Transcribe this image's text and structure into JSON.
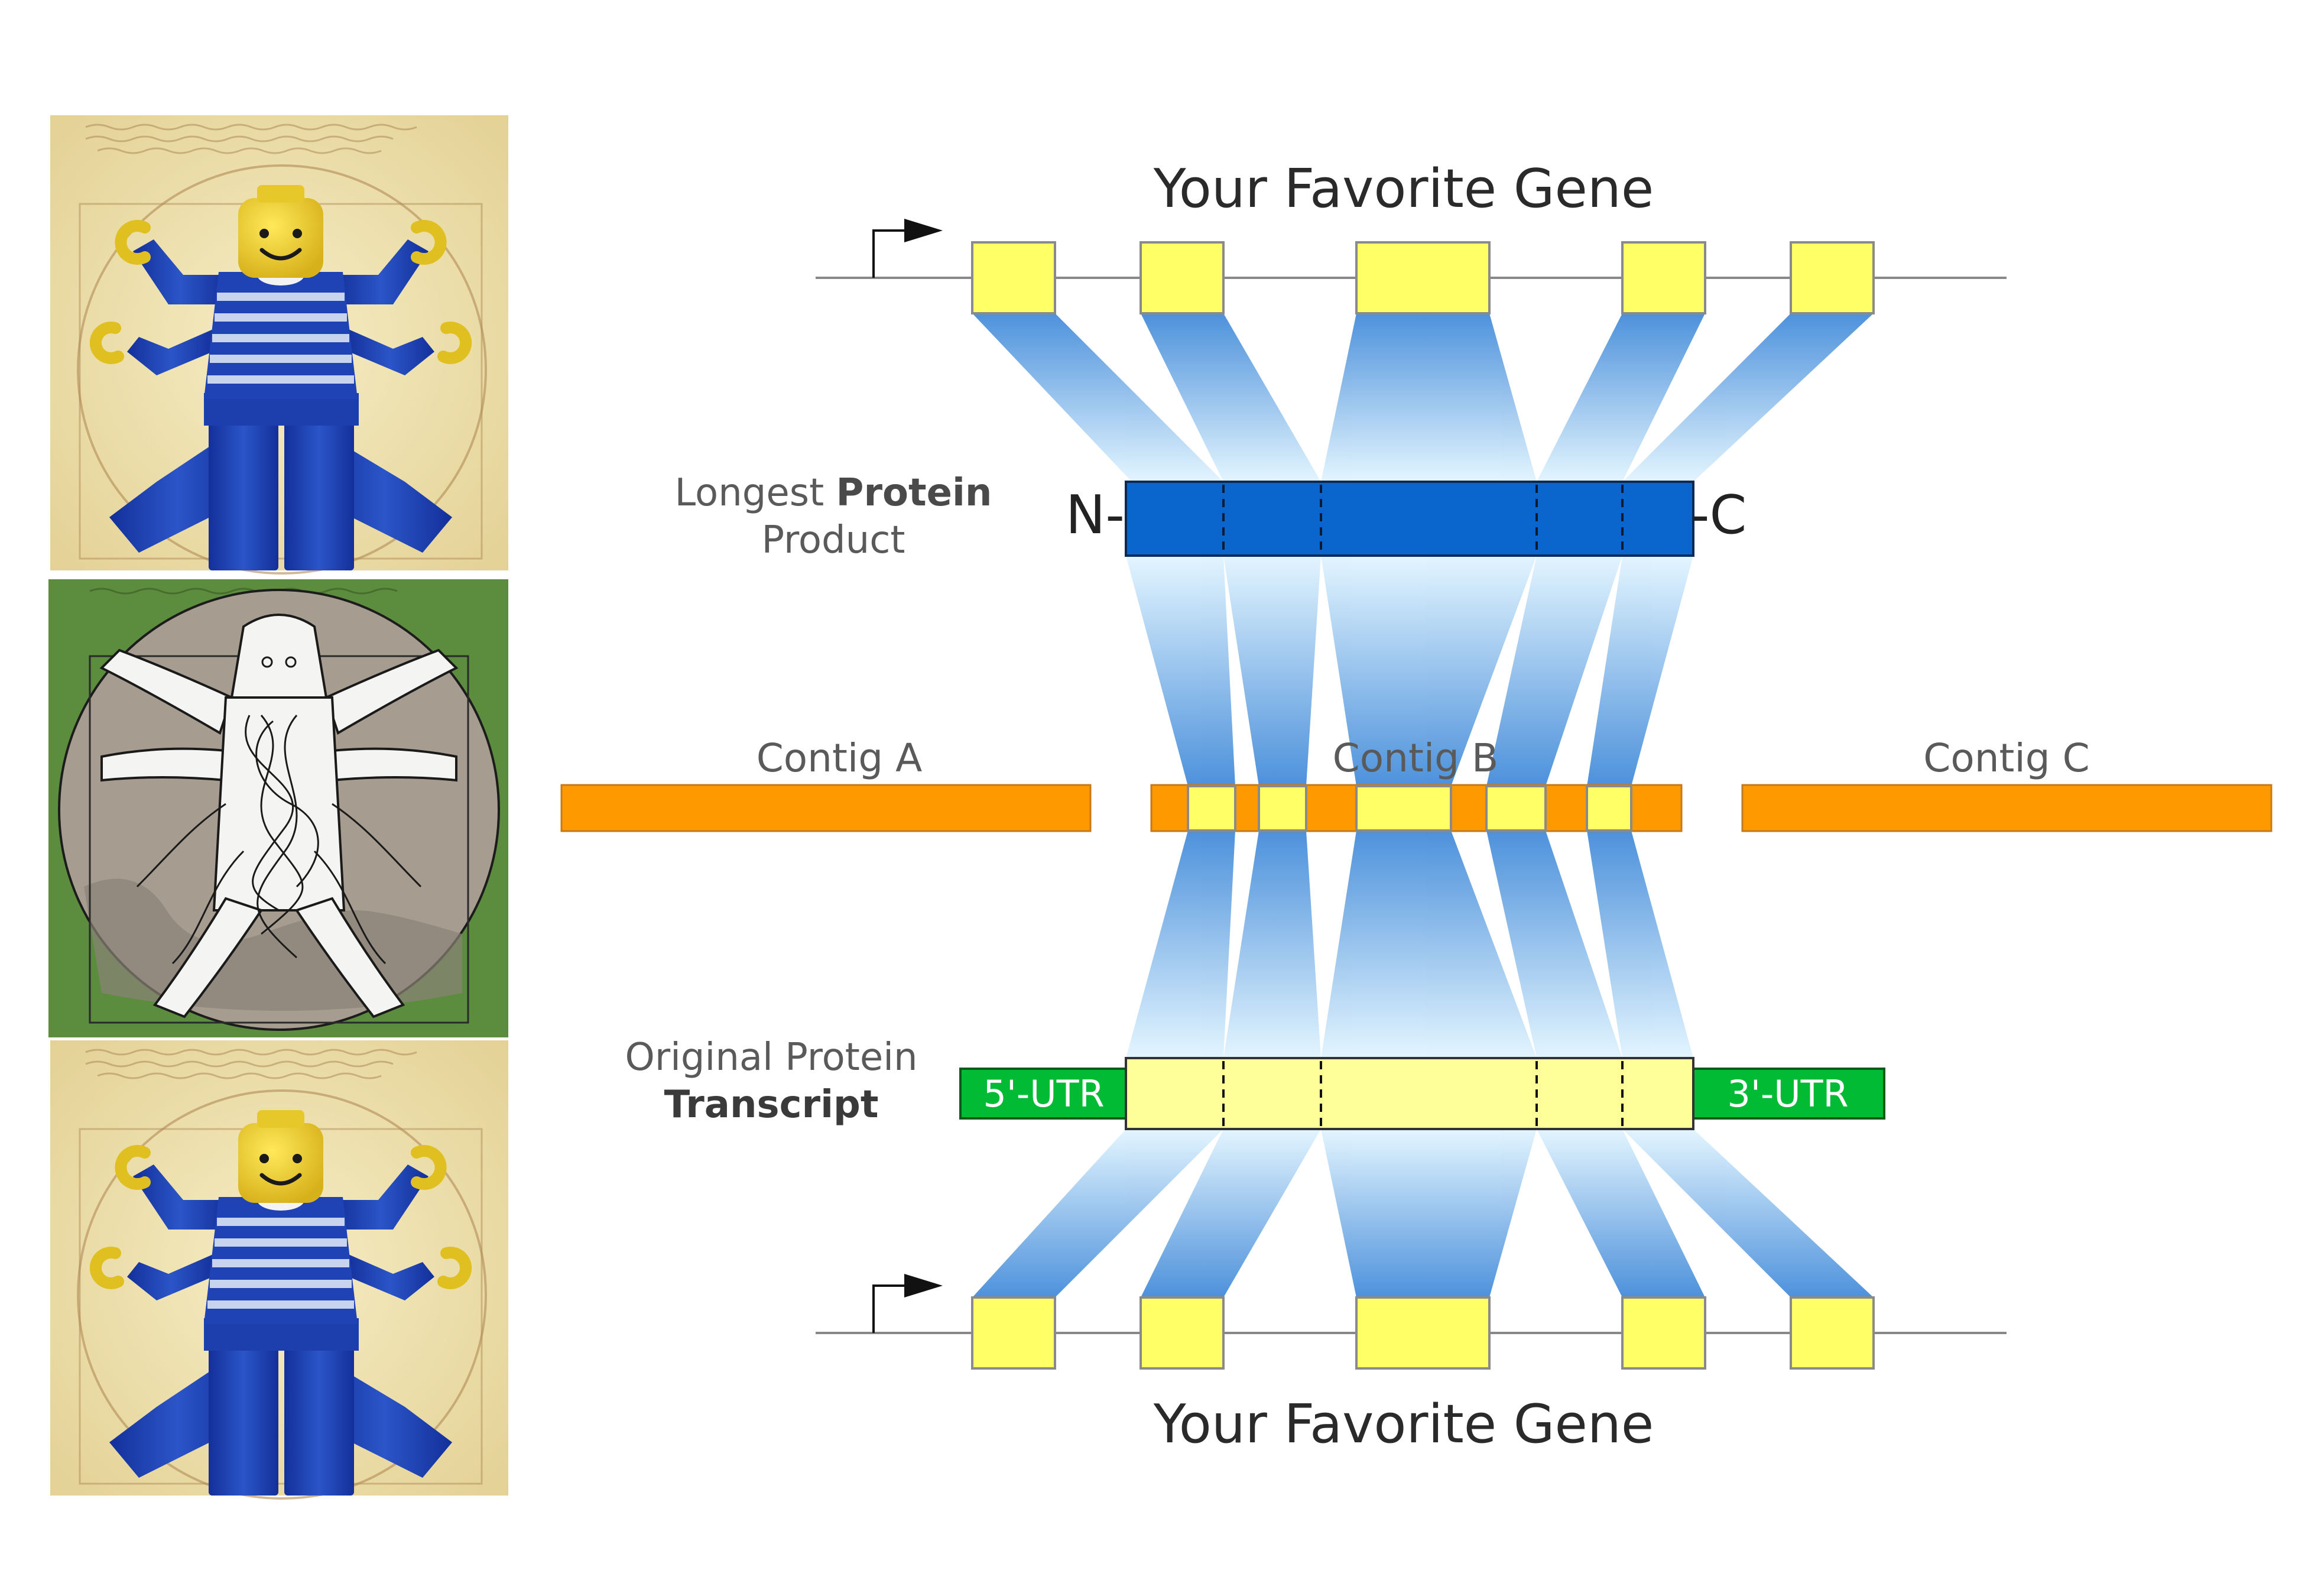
{
  "panels": {
    "top_image": {
      "subject": "lego-vitruvian-man",
      "background": "#efe3b4"
    },
    "middle_image": {
      "subject": "vitruvian-tentacle-creature-sketch",
      "background": "#5b8a3c",
      "disc": "#a89e92"
    },
    "bottom_image": {
      "subject": "lego-vitruvian-man",
      "background": "#efe3b4"
    }
  },
  "diagram": {
    "gene_top_title": "Your Favorite Gene",
    "gene_bottom_title": "Your Favorite Gene",
    "protein_label": {
      "prefix": "Longest ",
      "bold": "Protein",
      "line2": "Product"
    },
    "protein_n_terminus": "N-",
    "protein_c_terminus": "-C",
    "transcript_label": {
      "line1": "Original Protein",
      "bold": "Transcript"
    },
    "utr5": "5'-UTR",
    "utr3": "3'-UTR",
    "contig_a": "Contig A",
    "contig_b": "Contig B",
    "contig_c": "Contig C",
    "exon_count": 5
  },
  "colors": {
    "exon_fill": "#ffff66",
    "protein_fill": "#0a66cc",
    "transcript_fill": "#ffff99",
    "contig_fill": "#ff9900",
    "utr_fill": "#00bb33",
    "link_blue": "#3a86d8",
    "line_grey": "#888888"
  }
}
